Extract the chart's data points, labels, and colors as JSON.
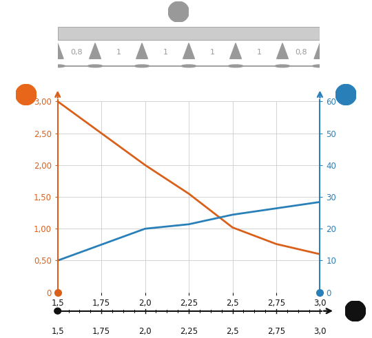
{
  "x_values": [
    1.5,
    1.75,
    2.0,
    2.25,
    2.5,
    2.75,
    3.0
  ],
  "orange_y": [
    3.0,
    2.5,
    2.0,
    1.55,
    1.02,
    0.76,
    0.6
  ],
  "blue_y": [
    0.5,
    0.75,
    1.0,
    1.07,
    1.22,
    1.32,
    1.42
  ],
  "orange_color": "#d9601a",
  "blue_color": "#2980b9",
  "gray_color": "#aaaaaa",
  "dark_color": "#111111",
  "label1_color": "#e8661a",
  "label2_color": "#111111",
  "label3_color": "#2980b9",
  "label4_color": "#999999",
  "xlim": [
    1.5,
    3.0
  ],
  "ylim_left": [
    0,
    3.0
  ],
  "ylim_right": [
    0,
    60
  ],
  "xtick_labels": [
    "1,5",
    "1,75",
    "2,0",
    "2,25",
    "2,5",
    "2,75",
    "3,0"
  ],
  "ytick_labels_left": [
    "0",
    "0,50",
    "1,00",
    "1,50",
    "2,00",
    "2,50",
    "3,00"
  ],
  "ytick_labels_right": [
    "0",
    "10",
    "20",
    "30",
    "40",
    "50",
    "60"
  ],
  "yticks_left": [
    0,
    0.5,
    1.0,
    1.5,
    2.0,
    2.5,
    3.0
  ],
  "yticks_right": [
    0,
    10,
    20,
    30,
    40,
    50,
    60
  ],
  "xticks": [
    1.5,
    1.75,
    2.0,
    2.25,
    2.5,
    2.75,
    3.0
  ],
  "beam_spacing": [
    0.8,
    1,
    1,
    1,
    1,
    0.8
  ],
  "beam_spacing_labels": [
    "0,8",
    "1",
    "1",
    "1",
    "1",
    "0,8"
  ]
}
